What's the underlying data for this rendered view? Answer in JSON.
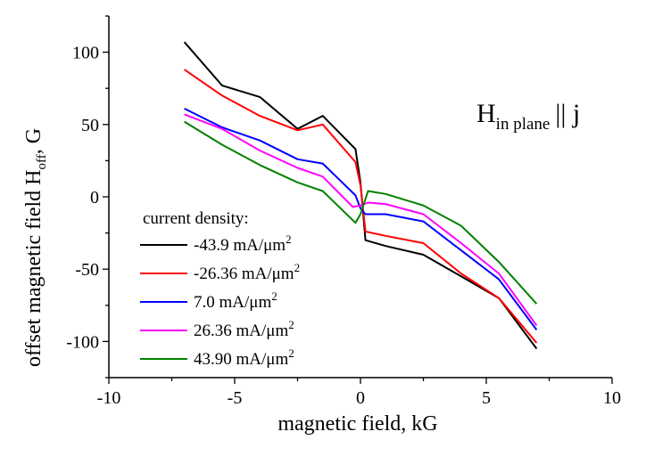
{
  "chart_data": {
    "type": "line",
    "xlabel": "magnetic field, kG",
    "ylabel_main": "offset magnetic field H",
    "ylabel_sub": "off",
    "ylabel_tail": ", G",
    "xlim": [
      -10,
      10
    ],
    "ylim": [
      -125,
      125
    ],
    "xticks": [
      -10,
      -5,
      0,
      5,
      10
    ],
    "yticks": [
      -100,
      -50,
      0,
      50,
      100
    ],
    "grid": false,
    "legend": {
      "title": "current density:",
      "placement": "bottom-left",
      "unit_main": "mA/μm",
      "unit_sup": "2"
    },
    "annotation": {
      "main": "H",
      "sub": "in plane",
      "tail": "|| j"
    },
    "series": [
      {
        "name": "-43.9",
        "color": "#000000",
        "x": [
          -7,
          -5.5,
          -4,
          -2.5,
          -1.5,
          -0.2,
          0,
          0.2,
          1,
          2.5,
          4,
          5.5,
          7
        ],
        "y": [
          107,
          77,
          69,
          47,
          56,
          33,
          10,
          -30,
          -34,
          -40,
          -55,
          -70,
          -105
        ]
      },
      {
        "name": "-26.36",
        "color": "#ff0000",
        "x": [
          -7,
          -5.5,
          -4,
          -2.5,
          -1.5,
          -0.2,
          0,
          0.2,
          1,
          2.5,
          4,
          5.5,
          7
        ],
        "y": [
          88,
          70,
          56,
          46,
          50,
          24,
          8,
          -24,
          -27,
          -32,
          -53,
          -70,
          -101
        ]
      },
      {
        "name": "7.0",
        "color": "#0000ff",
        "x": [
          -7,
          -5.5,
          -4,
          -2.5,
          -1.5,
          -0.2,
          0,
          0.2,
          1,
          2.5,
          4,
          5.5,
          7
        ],
        "y": [
          61,
          48,
          39,
          26,
          23,
          1,
          -8,
          -12,
          -12,
          -17,
          -37,
          -57,
          -92
        ]
      },
      {
        "name": "26.36",
        "color": "#ff00ff",
        "x": [
          -7,
          -5.5,
          -4,
          -2.5,
          -1.5,
          -0.3,
          0,
          0.3,
          1,
          2.5,
          4,
          5.5,
          7
        ],
        "y": [
          57,
          47,
          32,
          20,
          14,
          -7,
          -6,
          -4,
          -5,
          -12,
          -32,
          -53,
          -89
        ]
      },
      {
        "name": "43.90",
        "color": "#008000",
        "x": [
          -7,
          -5.5,
          -4,
          -2.5,
          -1.5,
          -0.2,
          0,
          0.3,
          1,
          2.5,
          4,
          5.5,
          7
        ],
        "y": [
          52,
          36,
          22,
          10,
          4,
          -18,
          -12,
          4,
          2,
          -6,
          -20,
          -45,
          -74
        ]
      }
    ]
  }
}
